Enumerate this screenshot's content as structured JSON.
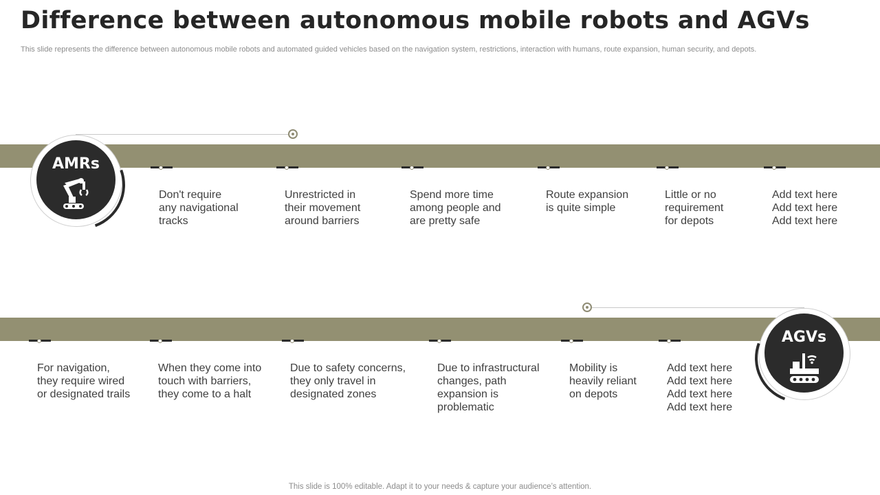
{
  "title": "Difference between autonomous mobile robots and AGVs",
  "subtitle": "This slide represents the difference between autonomous mobile robots and automated guided vehicles based on the navigation system, restrictions, interaction with humans, route expansion, human security, and depots.",
  "footer": "This slide is 100% editable. Adapt it to your needs & capture your audience’s attention.",
  "amr": {
    "label": "AMRs",
    "icon": "robot-arm-icon",
    "items": [
      "Don't require\nany navigational\ntracks",
      "Unrestricted in\ntheir movement\naround barriers",
      "Spend more time\namong people and\nare pretty safe",
      "Route expansion\nis quite simple",
      "Little or no\nrequirement\nfor depots",
      "Add text here\nAdd text here\nAdd text here"
    ]
  },
  "agv": {
    "label": "AGVs",
    "icon": "guided-vehicle-icon",
    "items": [
      "For navigation,\nthey require wired\nor designated trails",
      "When they come into\ntouch with barriers,\nthey come to a halt",
      "Due to safety concerns,\nthey only travel in\ndesignated zones",
      "Due to infrastructural\nchanges, path\nexpansion is\nproblematic",
      "Mobility is\nheavily reliant\non depots",
      "Add text here\nAdd text here\nAdd text here\nAdd text here"
    ]
  },
  "colors": {
    "band": "#939072",
    "disc": "#2b2b2b",
    "accent": "#8f8c74"
  }
}
